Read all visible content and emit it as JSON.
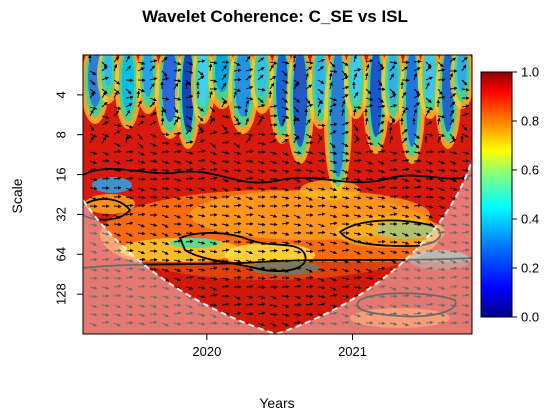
{
  "chart_data": {
    "type": "heatmap",
    "subtype": "wavelet-coherence",
    "title": "Wavelet Coherence: C_SE vs ISL",
    "xlabel": "Years",
    "ylabel": "Scale",
    "x_ticks": [
      "2020",
      "2021"
    ],
    "x_range": [
      2019.15,
      2021.82
    ],
    "y_ticks": [
      "4",
      "8",
      "16",
      "32",
      "64",
      "128"
    ],
    "y_scale": "log2",
    "y_range": [
      2,
      256
    ],
    "colorbar": {
      "ticks": [
        "0.0",
        "0.2",
        "0.4",
        "0.6",
        "0.8",
        "1.0"
      ],
      "range": [
        0,
        1
      ],
      "colors": [
        "#00008b",
        "#0000ff",
        "#0080ff",
        "#00ffff",
        "#80ff80",
        "#ffff00",
        "#ff8000",
        "#ff0000",
        "#8b0000"
      ]
    },
    "cone_of_influence": true,
    "phase_arrows": true,
    "significance_contours": true
  },
  "colors": {
    "background": "#ffffff",
    "high_coherence": "#c80000",
    "low_coherence": "#0000a0",
    "coi_shade": "#ffffff"
  }
}
